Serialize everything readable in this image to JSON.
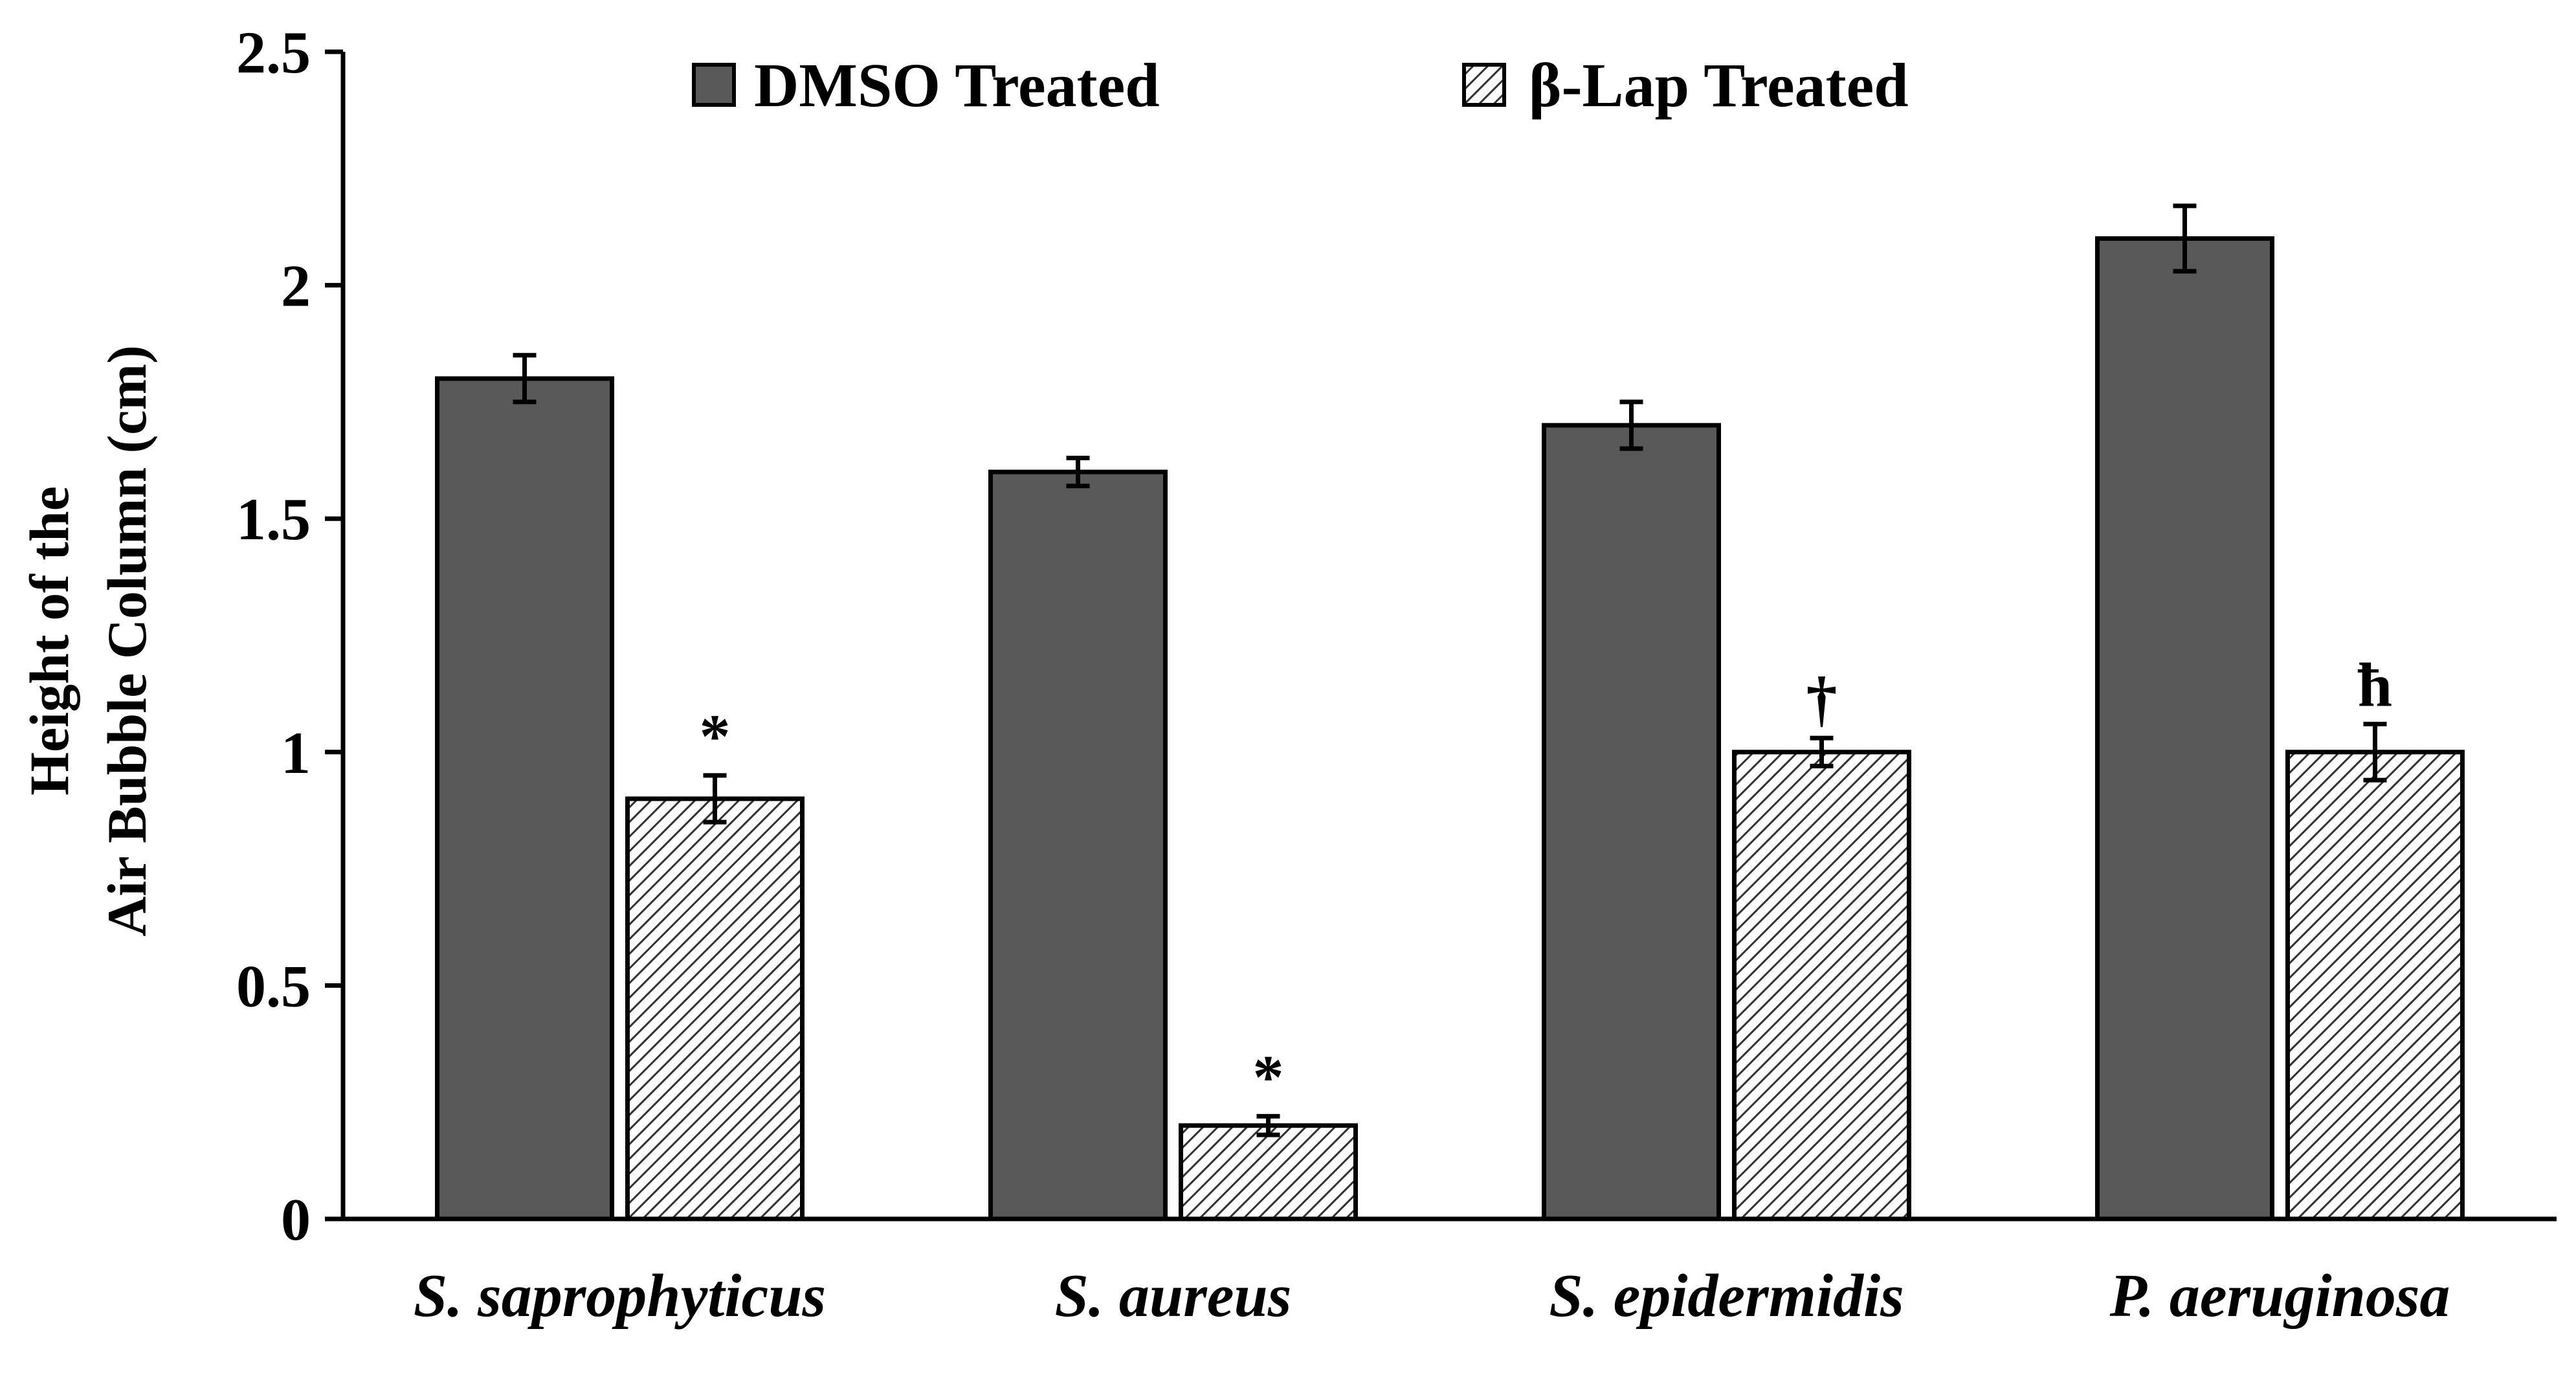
{
  "chart_data": {
    "type": "bar",
    "title": "",
    "xlabel": "",
    "ylabel_lines": [
      "Height of the",
      "Air Bubble Column (cm)"
    ],
    "ylim": [
      0,
      2.5
    ],
    "yticks": [
      0,
      0.5,
      1,
      1.5,
      2,
      2.5
    ],
    "ytick_labels": [
      "0",
      "0.5",
      "1",
      "1.5",
      "2",
      "2.5"
    ],
    "categories": [
      "S. saprophyticus",
      "S. aureus",
      "S. epidermidis",
      "P. aeruginosa"
    ],
    "series": [
      {
        "name": "DMSO Treated",
        "color": "#595959",
        "pattern": "solid",
        "values": [
          1.8,
          1.6,
          1.7,
          2.1
        ],
        "errors": [
          0.05,
          0.03,
          0.05,
          0.07
        ],
        "annotations": [
          "",
          "",
          "",
          ""
        ]
      },
      {
        "name": "β-Lap Treated",
        "color": "#ffffff",
        "pattern": "diagonal-hatch",
        "values": [
          0.9,
          0.2,
          1.0,
          1.0
        ],
        "errors": [
          0.05,
          0.02,
          0.03,
          0.06
        ],
        "annotations": [
          "*",
          "*",
          "†",
          "ħ"
        ]
      }
    ],
    "legend_position": "top",
    "grid": false
  }
}
